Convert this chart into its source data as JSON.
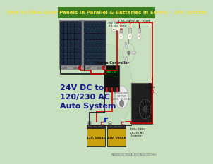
{
  "title": "How to Wire Solar Panels in Parallel & Batteries in Sereis - 24V System",
  "title_bg": "#3a7d1e",
  "title_color": "#f0e040",
  "bg_color": "#c8dfc0",
  "text_left_lines": [
    "24V DC to",
    "120/230 AC",
    "Auto System"
  ],
  "text_left_color": "#1a1a8c",
  "footer_text": "WWW.ELECTRICALTECHNOLOGY.ORG",
  "panel_color": "#111122",
  "panel_grid": "#2a4a6a",
  "battery_color_top": "#d4a020",
  "battery_case": "#222222",
  "wire_red": "#cc0000",
  "wire_black": "#111111",
  "wire_blue": "#0000cc",
  "charge_ctrl_color": "#111111",
  "inverter_color": "#2a2a2a",
  "ac_load_label": "120-240V AC Load",
  "dc_output_label": "DC OUTPUT\n3V-9DC Load",
  "ac_output_label": "AC\nOutput",
  "input_label": "24V\nINPUT",
  "inverter_label": "120~230V\nDC to AC\nInverter",
  "cc_label": "Charge Controller",
  "bat1_label": "12V, 100Ah",
  "bat2_label": "12V, 100Ah",
  "panel1_label": "- 24V   + 24V",
  "panel2_label": "- 24V   + 24V"
}
